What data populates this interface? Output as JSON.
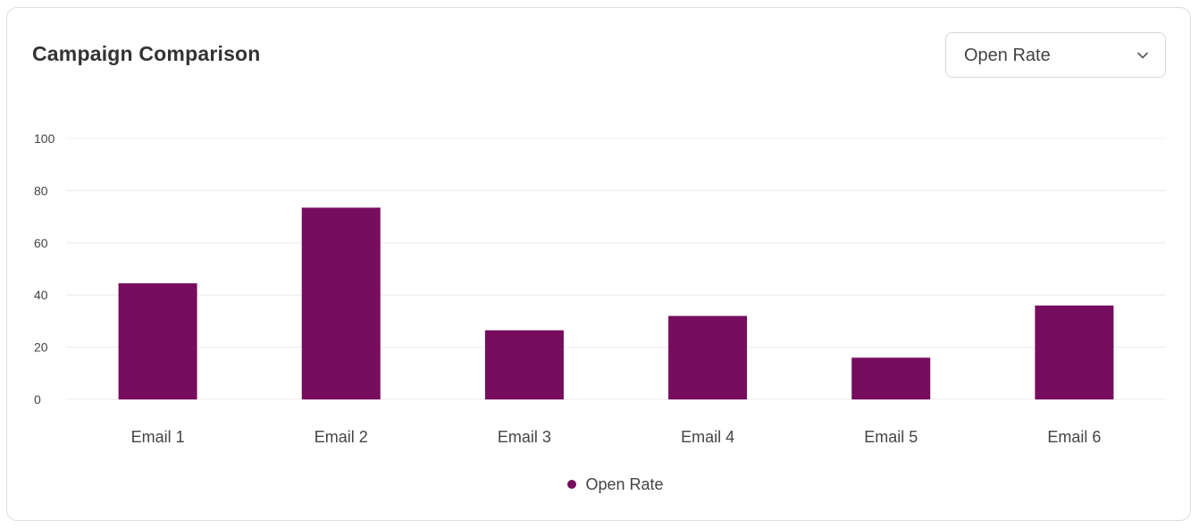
{
  "card": {
    "title": "Campaign Comparison"
  },
  "metric_select": {
    "selected": "Open Rate",
    "icon": "chevron-down-icon"
  },
  "colors": {
    "bar": "#760d5e",
    "grid": "#ececec",
    "tick_text": "#444444"
  },
  "chart_data": {
    "type": "bar",
    "title": "",
    "xlabel": "",
    "ylabel": "",
    "categories": [
      "Email 1",
      "Email 2",
      "Email 3",
      "Email 4",
      "Email 5",
      "Email 6"
    ],
    "series": [
      {
        "name": "Open Rate",
        "values": [
          44.5,
          73.5,
          26.5,
          32,
          16,
          36
        ]
      }
    ],
    "ylim": [
      0,
      100
    ],
    "yticks": [
      0,
      20,
      40,
      60,
      80,
      100
    ],
    "grid": true,
    "legend": "bottom-center"
  }
}
